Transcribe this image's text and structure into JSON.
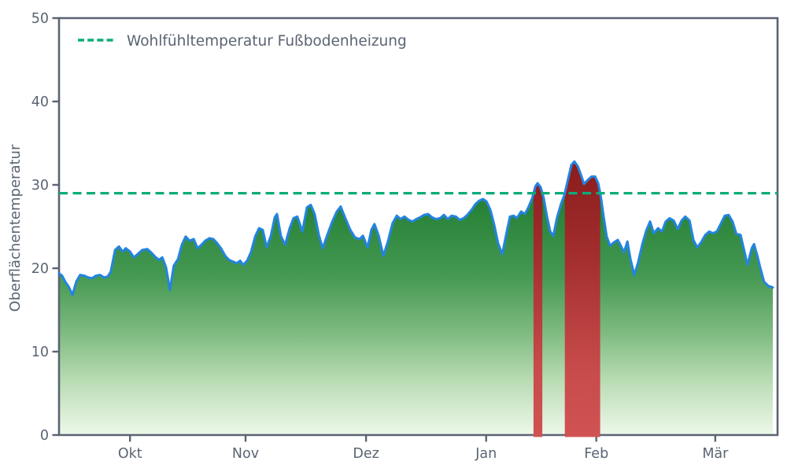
{
  "figure": {
    "ylabel": "Oberflächentemperatur",
    "legend": {
      "label": "Wohlfühltemperatur Fußbodenheizung"
    }
  },
  "chart_data": {
    "type": "area",
    "series_name": "Oberflächentemperatur",
    "title": "",
    "xlabel": "",
    "ylabel": "Oberflächentemperatur",
    "ylim": [
      0,
      50
    ],
    "y_ticks": [
      0,
      10,
      20,
      30,
      40,
      50
    ],
    "xlim_days": [
      0,
      186
    ],
    "x_ticks": [
      {
        "day": 18.5,
        "label": "Okt"
      },
      {
        "day": 48.6,
        "label": "Nov"
      },
      {
        "day": 80.0,
        "label": "Dez"
      },
      {
        "day": 111.3,
        "label": "Jan"
      },
      {
        "day": 140.0,
        "label": "Feb"
      },
      {
        "day": 171.0,
        "label": "Mär"
      }
    ],
    "threshold": {
      "label": "Wohlfühltemperatur Fußbodenheizung",
      "value": 29
    },
    "legend_position": "upper left",
    "grid": false,
    "colors": {
      "line": "#2484e0",
      "threshold": "#0cac7a",
      "axis": "#5a6472",
      "area_gradient": [
        "#15712b",
        "#2b853b",
        "#459952",
        "#7dba7f",
        "#b9dcb4",
        "#eff8eb"
      ],
      "exceed_gradient": [
        "#8a1c1c",
        "#a32e2e",
        "#c04646",
        "#d05252"
      ]
    },
    "points": [
      [
        0,
        19.4
      ],
      [
        0.8,
        19.1
      ],
      [
        1.6,
        18.4
      ],
      [
        2.5,
        17.8
      ],
      [
        3.5,
        16.8
      ],
      [
        4.5,
        18.4
      ],
      [
        5.5,
        19.2
      ],
      [
        6.6,
        19.1
      ],
      [
        7.6,
        18.9
      ],
      [
        8.6,
        18.8
      ],
      [
        9.6,
        19.1
      ],
      [
        10.7,
        19.2
      ],
      [
        11.7,
        18.9
      ],
      [
        12.7,
        19.0
      ],
      [
        13.5,
        19.6
      ],
      [
        14.6,
        22.2
      ],
      [
        15.6,
        22.6
      ],
      [
        16.6,
        22.0
      ],
      [
        17.4,
        22.4
      ],
      [
        18.5,
        22.0
      ],
      [
        19.5,
        21.3
      ],
      [
        20.5,
        21.7
      ],
      [
        21.7,
        22.2
      ],
      [
        23.0,
        22.3
      ],
      [
        24.0,
        21.9
      ],
      [
        25.0,
        21.4
      ],
      [
        26.0,
        21.0
      ],
      [
        26.9,
        21.3
      ],
      [
        27.9,
        20.1
      ],
      [
        28.9,
        17.4
      ],
      [
        29.9,
        20.3
      ],
      [
        31.0,
        21.1
      ],
      [
        32.0,
        22.8
      ],
      [
        33.0,
        23.8
      ],
      [
        34.0,
        23.3
      ],
      [
        35.1,
        23.5
      ],
      [
        36.1,
        22.4
      ],
      [
        37.1,
        22.8
      ],
      [
        38.1,
        23.3
      ],
      [
        39.2,
        23.6
      ],
      [
        40.2,
        23.5
      ],
      [
        41.2,
        23.0
      ],
      [
        42.2,
        22.4
      ],
      [
        43.3,
        21.5
      ],
      [
        44.3,
        21.0
      ],
      [
        45.3,
        20.8
      ],
      [
        46.3,
        20.6
      ],
      [
        47.2,
        20.9
      ],
      [
        48.0,
        20.4
      ],
      [
        49.0,
        20.9
      ],
      [
        50.0,
        21.9
      ],
      [
        51.1,
        23.8
      ],
      [
        52.1,
        24.8
      ],
      [
        53.1,
        24.6
      ],
      [
        54.1,
        22.5
      ],
      [
        55.2,
        23.9
      ],
      [
        56.2,
        26.1
      ],
      [
        56.8,
        26.5
      ],
      [
        57.8,
        23.9
      ],
      [
        58.9,
        22.8
      ],
      [
        60.1,
        24.8
      ],
      [
        61.1,
        26.0
      ],
      [
        62.1,
        26.2
      ],
      [
        63.4,
        24.4
      ],
      [
        64.6,
        27.3
      ],
      [
        65.6,
        27.6
      ],
      [
        66.6,
        26.5
      ],
      [
        67.7,
        24.0
      ],
      [
        68.7,
        22.4
      ],
      [
        69.9,
        24.0
      ],
      [
        71.2,
        25.6
      ],
      [
        72.4,
        26.8
      ],
      [
        73.4,
        27.4
      ],
      [
        74.6,
        26.0
      ],
      [
        75.9,
        24.6
      ],
      [
        77.1,
        23.7
      ],
      [
        78.3,
        23.5
      ],
      [
        79.2,
        23.9
      ],
      [
        80.4,
        22.5
      ],
      [
        81.4,
        24.6
      ],
      [
        82.2,
        25.3
      ],
      [
        83.3,
        23.9
      ],
      [
        84.5,
        21.5
      ],
      [
        85.7,
        23.2
      ],
      [
        86.9,
        25.4
      ],
      [
        88.0,
        26.3
      ],
      [
        89.0,
        25.9
      ],
      [
        90.0,
        26.2
      ],
      [
        91.1,
        25.8
      ],
      [
        92.1,
        25.6
      ],
      [
        93.1,
        25.9
      ],
      [
        94.1,
        26.1
      ],
      [
        95.1,
        26.4
      ],
      [
        96.2,
        26.5
      ],
      [
        97.2,
        26.1
      ],
      [
        98.2,
        25.9
      ],
      [
        99.3,
        26.0
      ],
      [
        100.3,
        26.4
      ],
      [
        101.3,
        25.9
      ],
      [
        102.3,
        26.3
      ],
      [
        103.4,
        26.2
      ],
      [
        104.4,
        25.8
      ],
      [
        105.4,
        26.0
      ],
      [
        106.4,
        26.4
      ],
      [
        107.5,
        27.0
      ],
      [
        108.5,
        27.7
      ],
      [
        109.5,
        28.1
      ],
      [
        110.5,
        28.3
      ],
      [
        111.4,
        28.0
      ],
      [
        112.4,
        27.0
      ],
      [
        113.4,
        25.2
      ],
      [
        114.4,
        23.0
      ],
      [
        115.5,
        21.7
      ],
      [
        116.5,
        24.0
      ],
      [
        117.5,
        26.2
      ],
      [
        118.5,
        26.3
      ],
      [
        119.3,
        26.0
      ],
      [
        120.4,
        26.8
      ],
      [
        121.4,
        26.5
      ],
      [
        122.2,
        27.2
      ],
      [
        123.3,
        28.4
      ],
      [
        124.1,
        29.8
      ],
      [
        124.7,
        30.2
      ],
      [
        125.5,
        29.7
      ],
      [
        126.3,
        28.4
      ],
      [
        127.1,
        26.3
      ],
      [
        128.0,
        24.4
      ],
      [
        128.8,
        23.9
      ],
      [
        129.8,
        26.1
      ],
      [
        130.8,
        27.7
      ],
      [
        131.7,
        28.8
      ],
      [
        132.5,
        30.4
      ],
      [
        133.5,
        32.4
      ],
      [
        134.3,
        32.8
      ],
      [
        135.2,
        32.2
      ],
      [
        136.0,
        31.2
      ],
      [
        136.8,
        30.1
      ],
      [
        137.8,
        30.6
      ],
      [
        138.8,
        31.0
      ],
      [
        139.7,
        31.0
      ],
      [
        140.5,
        30.2
      ],
      [
        141.1,
        28.8
      ],
      [
        141.9,
        26.2
      ],
      [
        142.7,
        23.8
      ],
      [
        143.6,
        22.7
      ],
      [
        144.6,
        23.1
      ],
      [
        145.6,
        23.4
      ],
      [
        146.4,
        22.7
      ],
      [
        147.2,
        21.9
      ],
      [
        148.1,
        23.2
      ],
      [
        148.9,
        21.1
      ],
      [
        149.9,
        19.2
      ],
      [
        150.9,
        20.7
      ],
      [
        152.0,
        22.9
      ],
      [
        153.0,
        24.5
      ],
      [
        154.0,
        25.6
      ],
      [
        155.0,
        24.2
      ],
      [
        156.1,
        24.8
      ],
      [
        157.1,
        24.4
      ],
      [
        158.1,
        25.6
      ],
      [
        159.1,
        26.0
      ],
      [
        160.2,
        25.7
      ],
      [
        161.2,
        24.7
      ],
      [
        162.2,
        25.7
      ],
      [
        163.2,
        26.2
      ],
      [
        164.3,
        25.7
      ],
      [
        165.3,
        23.4
      ],
      [
        166.3,
        22.5
      ],
      [
        167.3,
        23.1
      ],
      [
        168.4,
        24.0
      ],
      [
        169.4,
        24.4
      ],
      [
        170.4,
        24.2
      ],
      [
        171.4,
        24.4
      ],
      [
        172.4,
        25.3
      ],
      [
        173.5,
        26.3
      ],
      [
        174.5,
        26.4
      ],
      [
        175.5,
        25.6
      ],
      [
        176.5,
        24.1
      ],
      [
        177.6,
        24.0
      ],
      [
        178.6,
        22.0
      ],
      [
        179.4,
        20.4
      ],
      [
        180.5,
        22.4
      ],
      [
        181.1,
        22.9
      ],
      [
        181.9,
        21.6
      ],
      [
        182.7,
        20.1
      ],
      [
        183.7,
        18.4
      ],
      [
        184.8,
        17.9
      ],
      [
        186.0,
        17.7
      ]
    ]
  }
}
